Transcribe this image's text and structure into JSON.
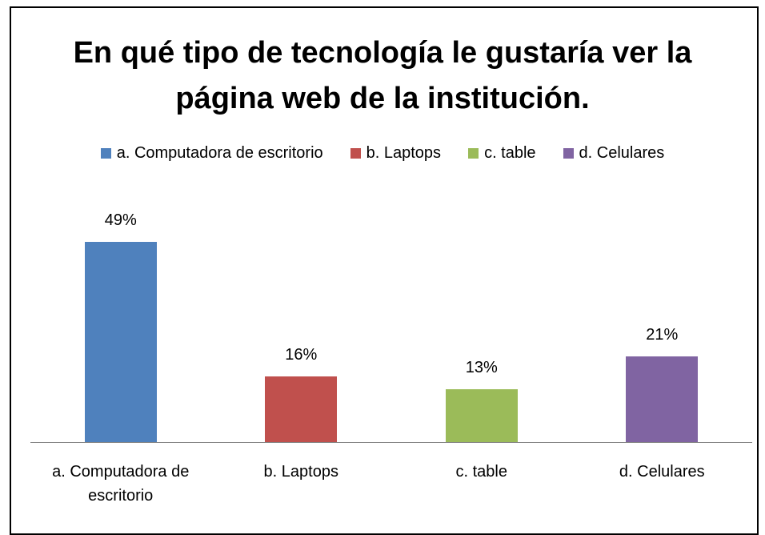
{
  "chart_data": {
    "type": "bar",
    "title": "En qué tipo de tecnología le gustaría ver la página web de la institución.",
    "categories": [
      "a. Computadora de escritorio",
      "b. Laptops",
      "c. table",
      "d. Celulares"
    ],
    "values": [
      49,
      16,
      13,
      21
    ],
    "value_labels": [
      "49%",
      "16%",
      "13%",
      "21%"
    ],
    "colors": [
      "#4f81bd",
      "#c0504d",
      "#9bbb59",
      "#8064a2"
    ],
    "legend": "top"
  }
}
